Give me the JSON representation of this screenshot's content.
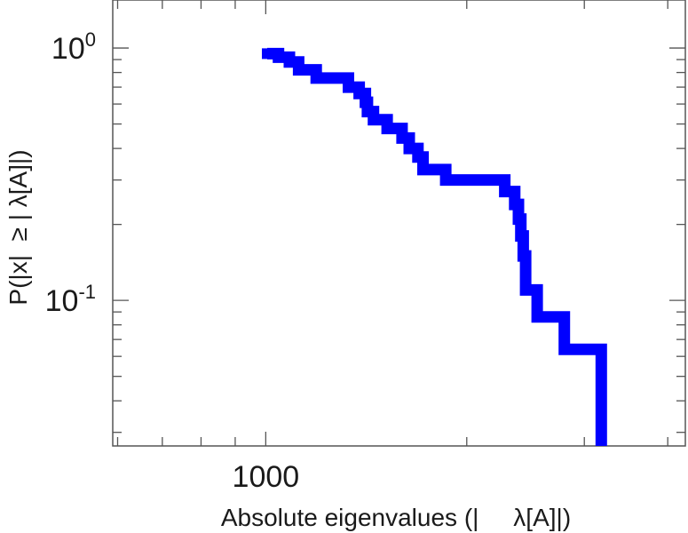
{
  "chart_data": {
    "type": "line",
    "style": "step",
    "xscale": "log",
    "yscale": "log",
    "xlim": [
      590,
      4250
    ],
    "ylim": [
      0.0265,
      1.55
    ],
    "xlabel": "Absolute eigenvalues (|     λ[A]|)",
    "ylabel": "P(|x|  ≥ | λ[A]|)",
    "x_ticks": [
      {
        "value": 1000,
        "label": "1000"
      }
    ],
    "y_ticks": [
      {
        "value": 1,
        "base": "10",
        "exp": "0"
      },
      {
        "value": 0.1,
        "base": "10",
        "exp": "-1"
      }
    ],
    "grid": false,
    "line_color": "#0000ff",
    "series": [
      {
        "x": [
          1005,
          1045,
          1085,
          1120,
          1190,
          1330,
          1380,
          1410,
          1420,
          1450,
          1520,
          1600,
          1640,
          1690,
          1720,
          1860,
          2280,
          2360,
          2390,
          2410,
          2430,
          2450,
          2550,
          2800,
          3180
        ],
        "y": [
          0.95,
          0.92,
          0.88,
          0.82,
          0.76,
          0.7,
          0.66,
          0.61,
          0.56,
          0.52,
          0.48,
          0.44,
          0.4,
          0.37,
          0.33,
          0.3,
          0.27,
          0.24,
          0.21,
          0.18,
          0.15,
          0.11,
          0.086,
          0.064,
          0.033
        ]
      }
    ]
  }
}
